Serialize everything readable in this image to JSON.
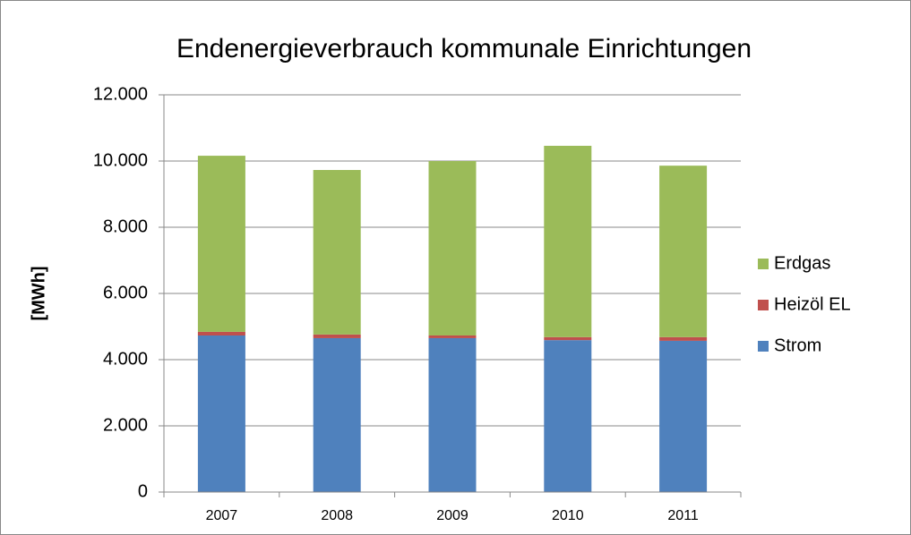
{
  "chart_data": {
    "type": "stacked_bar",
    "title": "Endenergieverbrauch kommunale Einrichtungen",
    "y_label": "[MWh]",
    "categories": [
      "2007",
      "2008",
      "2009",
      "2010",
      "2011"
    ],
    "series": [
      {
        "name": "Strom",
        "color": "#4f81bd",
        "values": [
          4730,
          4650,
          4650,
          4590,
          4570
        ]
      },
      {
        "name": "Heizöl EL",
        "color": "#c0504d",
        "values": [
          110,
          110,
          80,
          90,
          110
        ]
      },
      {
        "name": "Erdgas",
        "color": "#9bbb59",
        "values": [
          5320,
          4970,
          5270,
          5780,
          5180
        ]
      }
    ],
    "ylim": [
      0,
      12000
    ],
    "yticks": [
      0,
      {
        "value": 2000,
        "label": "2.000"
      },
      {
        "value": 4000,
        "label": "4.000"
      },
      {
        "value": 6000,
        "label": "6.000"
      },
      {
        "value": 8000,
        "label": "8.000"
      },
      {
        "value": 10000,
        "label": "10.000"
      },
      {
        "value": 12000,
        "label": "12.000"
      }
    ],
    "grid": true,
    "legend": "right"
  }
}
